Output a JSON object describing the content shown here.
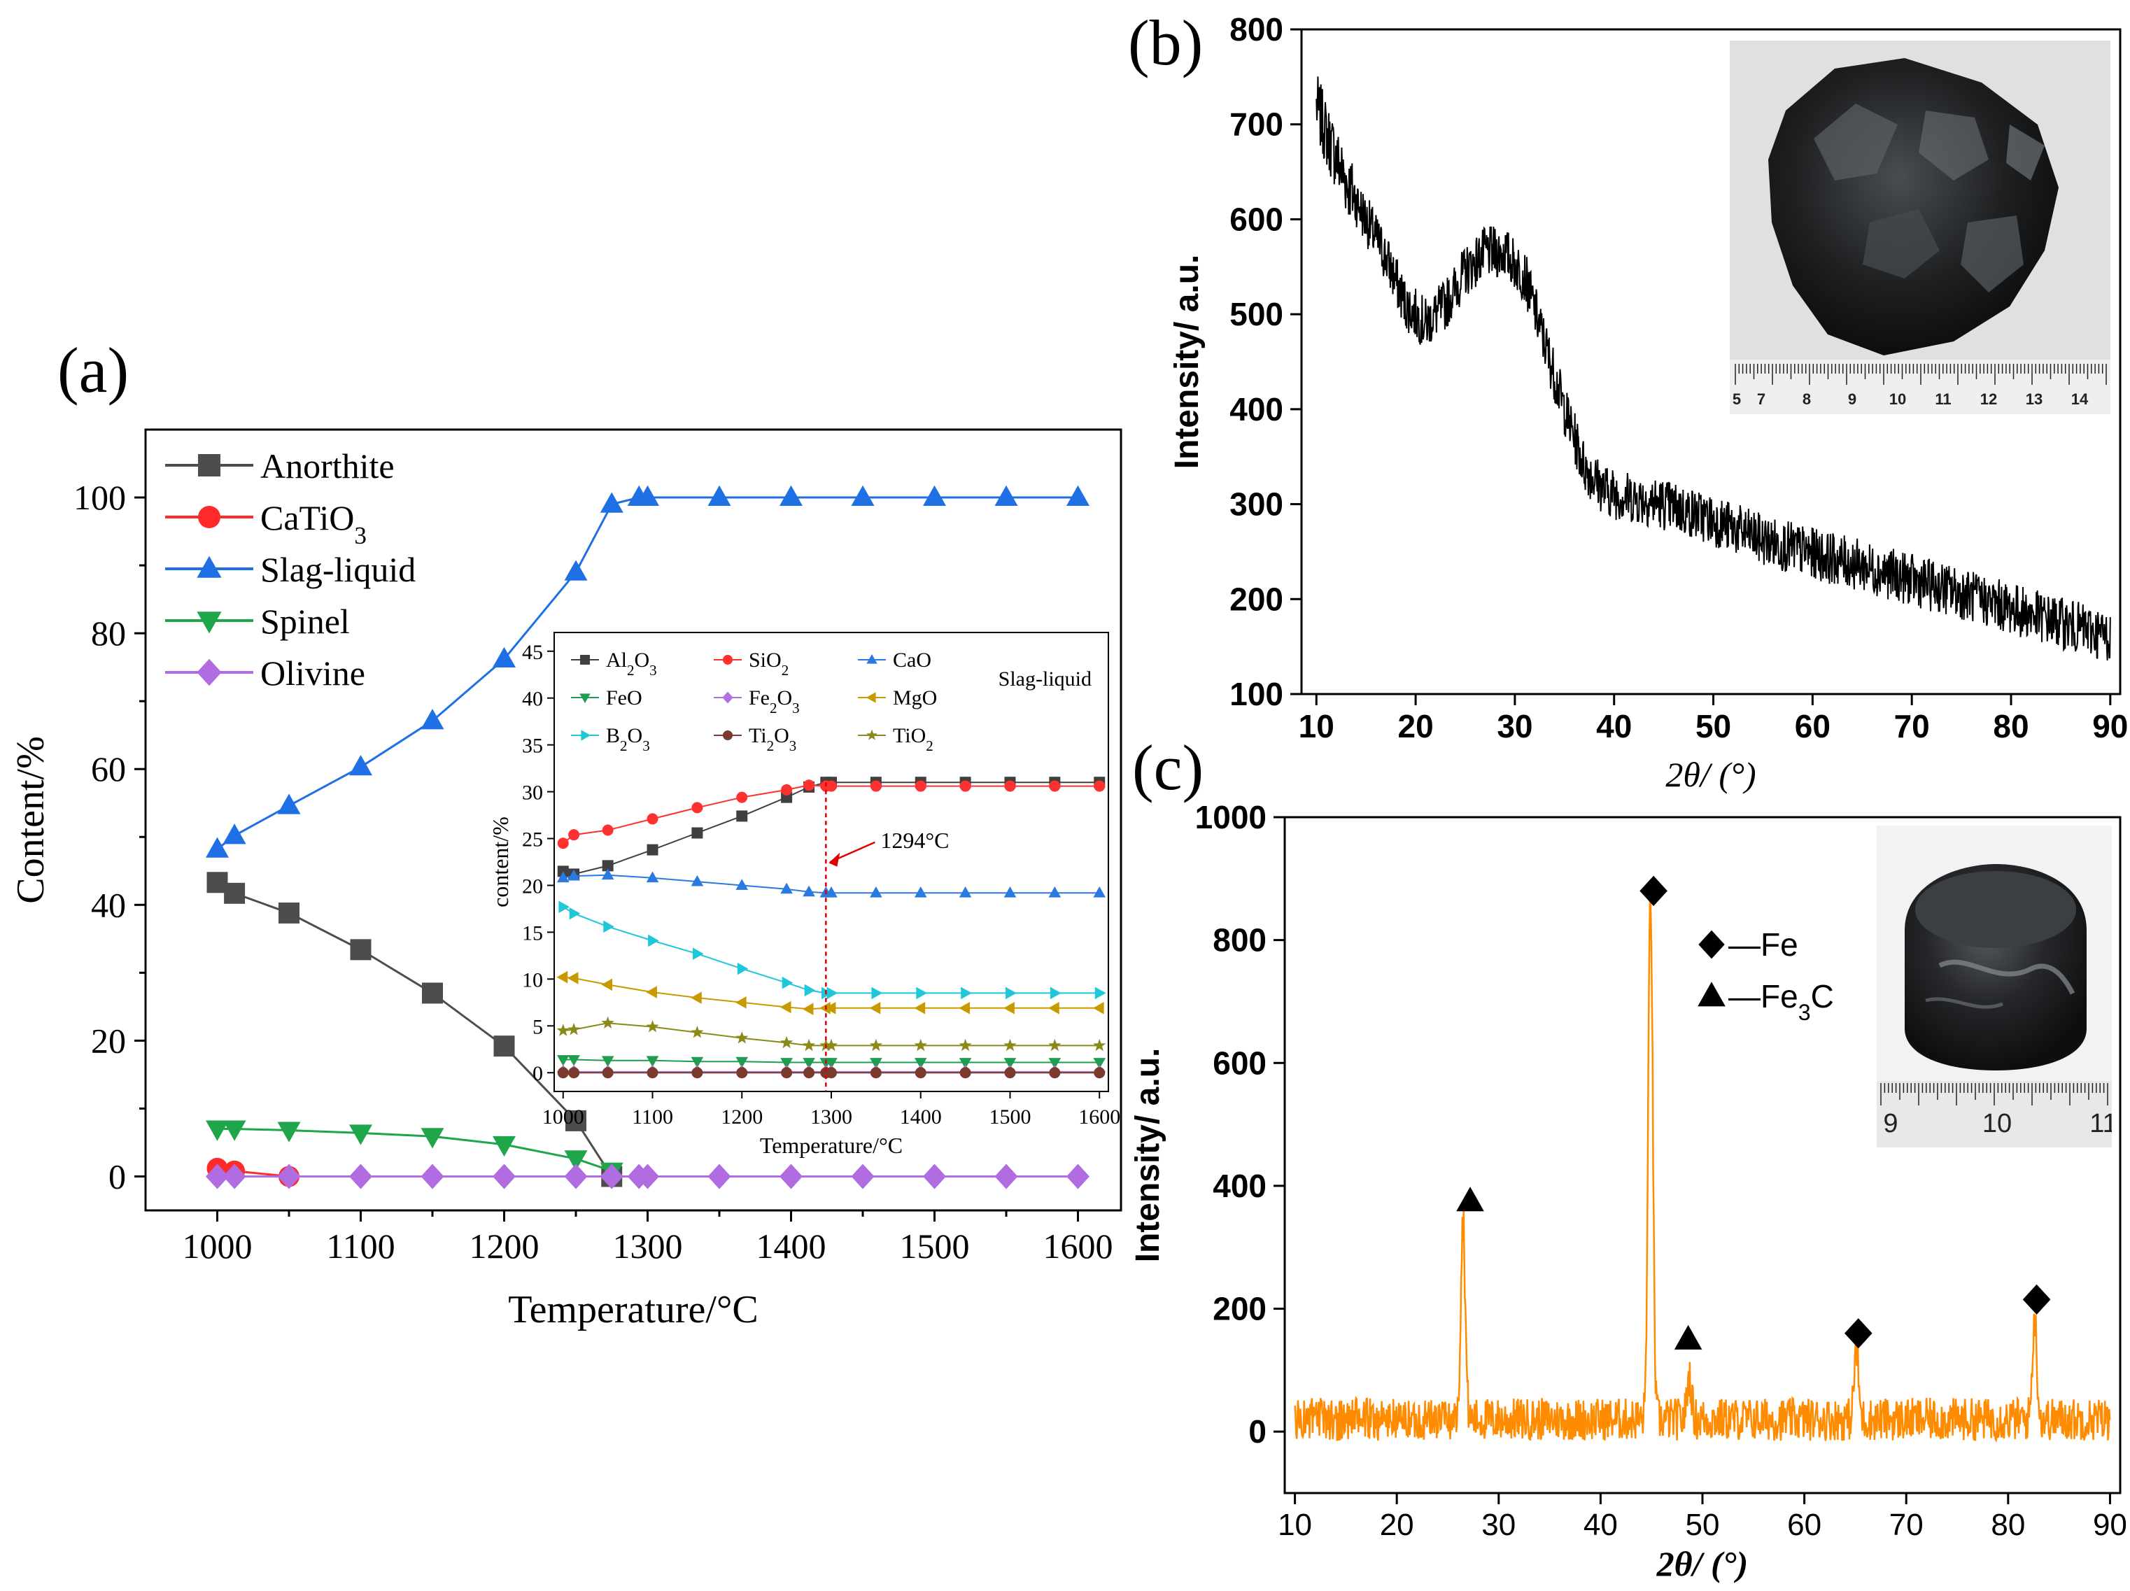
{
  "panels": {
    "a": {
      "label": "(a)"
    },
    "b": {
      "label": "(b)"
    },
    "c": {
      "label": "(c)"
    }
  },
  "chart_data": [
    {
      "id": "a",
      "type": "line",
      "xlabel": "Temperature/°C",
      "ylabel": "Content/%",
      "xlim": [
        950,
        1630
      ],
      "ylim": [
        -5,
        110
      ],
      "xticks": [
        1000,
        1100,
        1200,
        1300,
        1400,
        1500,
        1600
      ],
      "yticks": [
        0,
        20,
        40,
        60,
        80,
        100
      ],
      "legend_position": "top-left",
      "series": [
        {
          "name": "Anorthite",
          "color": "#4d4d4d",
          "marker": "square",
          "x": [
            1000,
            1012,
            1050,
            1100,
            1150,
            1200,
            1250,
            1275
          ],
          "y": [
            43.3,
            41.7,
            38.8,
            33.4,
            27.0,
            19.2,
            8.2,
            0
          ]
        },
        {
          "name": "CaTiO3",
          "name_display": [
            "CaTiO",
            "3"
          ],
          "color": "#ff2a2a",
          "marker": "circle",
          "x": [
            1000,
            1012,
            1050
          ],
          "y": [
            1.2,
            0.8,
            0
          ]
        },
        {
          "name": "Slag-liquid",
          "color": "#1f6fe5",
          "marker": "triangle-up",
          "x": [
            1000,
            1012,
            1050,
            1100,
            1150,
            1200,
            1250,
            1275,
            1294,
            1300,
            1350,
            1400,
            1450,
            1500,
            1550,
            1600
          ],
          "y": [
            48.2,
            50.2,
            54.6,
            60.3,
            67.1,
            76.2,
            89.0,
            99.0,
            100,
            100,
            100,
            100,
            100,
            100,
            100,
            100
          ]
        },
        {
          "name": "Spinel",
          "color": "#1fa64a",
          "marker": "triangle-down",
          "x": [
            1000,
            1012,
            1050,
            1100,
            1150,
            1200,
            1250,
            1275
          ],
          "y": [
            7.0,
            7.0,
            6.8,
            6.4,
            5.9,
            4.7,
            2.6,
            0.8
          ]
        },
        {
          "name": "Olivine",
          "color": "#b06ce0",
          "marker": "diamond",
          "x": [
            1000,
            1012,
            1050,
            1100,
            1150,
            1200,
            1250,
            1275,
            1294,
            1300,
            1350,
            1400,
            1450,
            1500,
            1550,
            1600
          ],
          "y": [
            0,
            0,
            0,
            0,
            0,
            0,
            0,
            0,
            0,
            0,
            0,
            0,
            0,
            0,
            0,
            0
          ]
        }
      ],
      "inset": {
        "type": "line",
        "title": "Slag-liquid",
        "xlabel": "Temperature/°C",
        "ylabel": "content/%",
        "xlim": [
          990,
          1610
        ],
        "ylim": [
          -2,
          47
        ],
        "xticks": [
          1000,
          1100,
          1200,
          1300,
          1400,
          1500,
          1600
        ],
        "yticks": [
          0,
          5,
          10,
          15,
          20,
          25,
          30,
          35,
          40,
          45
        ],
        "annotation": {
          "text": "1294°C",
          "x": 1294
        },
        "x": [
          1000,
          1012,
          1050,
          1100,
          1150,
          1200,
          1250,
          1275,
          1294,
          1300,
          1350,
          1400,
          1450,
          1500,
          1550,
          1600
        ],
        "series": [
          {
            "name": "Al2O3",
            "name_display": [
              "Al",
              "2",
              "O",
              "3"
            ],
            "color": "#404040",
            "marker": "square",
            "y": [
              21.5,
              21.2,
              22.1,
              23.8,
              25.6,
              27.4,
              29.4,
              30.5,
              31.0,
              31.0,
              31.0,
              31.0,
              31.0,
              31.0,
              31.0,
              31.0
            ]
          },
          {
            "name": "SiO2",
            "name_display": [
              "SiO",
              "2"
            ],
            "color": "#ff3030",
            "marker": "circle",
            "y": [
              24.5,
              25.4,
              25.9,
              27.1,
              28.3,
              29.4,
              30.2,
              30.7,
              30.6,
              30.6,
              30.6,
              30.6,
              30.6,
              30.6,
              30.6,
              30.6
            ]
          },
          {
            "name": "CaO",
            "color": "#2a7ae2",
            "marker": "triangle-up",
            "y": [
              20.8,
              21.0,
              21.1,
              20.8,
              20.4,
              20.0,
              19.6,
              19.3,
              19.2,
              19.2,
              19.2,
              19.2,
              19.2,
              19.2,
              19.2,
              19.2
            ]
          },
          {
            "name": "FeO",
            "color": "#1f9e50",
            "marker": "triangle-down",
            "y": [
              1.4,
              1.4,
              1.3,
              1.3,
              1.2,
              1.2,
              1.1,
              1.1,
              1.1,
              1.1,
              1.1,
              1.1,
              1.1,
              1.1,
              1.1,
              1.1
            ]
          },
          {
            "name": "Fe2O3",
            "name_display": [
              "Fe",
              "2",
              "O",
              "3"
            ],
            "color": "#b070e0",
            "marker": "diamond",
            "y": [
              0.1,
              0.1,
              0.1,
              0.1,
              0.1,
              0.1,
              0.1,
              0.1,
              0.1,
              0.1,
              0.1,
              0.1,
              0.1,
              0.1,
              0.1,
              0.1
            ]
          },
          {
            "name": "MgO",
            "color": "#c99a00",
            "marker": "triangle-left",
            "y": [
              10.2,
              10.1,
              9.4,
              8.6,
              8.0,
              7.5,
              7.0,
              6.8,
              6.9,
              6.9,
              6.9,
              6.9,
              6.9,
              6.9,
              6.9,
              6.9
            ]
          },
          {
            "name": "B2O3",
            "name_display": [
              "B",
              "2",
              "O",
              "3"
            ],
            "color": "#1ec8d8",
            "marker": "triangle-right",
            "y": [
              17.7,
              17.0,
              15.6,
              14.1,
              12.7,
              11.1,
              9.6,
              8.8,
              8.5,
              8.5,
              8.5,
              8.5,
              8.5,
              8.5,
              8.5,
              8.5
            ]
          },
          {
            "name": "Ti2O3",
            "name_display": [
              "Ti",
              "2",
              "O",
              "3"
            ],
            "color": "#7a3b2e",
            "marker": "circle",
            "y": [
              0,
              0,
              0,
              0,
              0,
              0,
              0,
              0,
              0,
              0,
              0,
              0,
              0,
              0,
              0,
              0
            ]
          },
          {
            "name": "TiO2",
            "name_display": [
              "TiO",
              "2"
            ],
            "color": "#8a8a1a",
            "marker": "star",
            "y": [
              4.5,
              4.6,
              5.3,
              4.9,
              4.3,
              3.7,
              3.2,
              2.9,
              2.9,
              2.9,
              2.9,
              2.9,
              2.9,
              2.9,
              2.9,
              2.9
            ]
          }
        ]
      }
    },
    {
      "id": "b",
      "type": "line",
      "xlabel": "2θ/ (°)",
      "ylabel": "Intensity/ a.u.",
      "xlim": [
        8.5,
        91
      ],
      "ylim": [
        100,
        800
      ],
      "xticks": [
        10,
        20,
        30,
        40,
        50,
        60,
        70,
        80,
        90
      ],
      "yticks": [
        100,
        200,
        300,
        400,
        500,
        600,
        700,
        800
      ],
      "series": [
        {
          "color": "#000000",
          "profile": [
            [
              10,
              720
            ],
            [
              11,
              690
            ],
            [
              13,
              640
            ],
            [
              15,
              600
            ],
            [
              17,
              560
            ],
            [
              19,
              510
            ],
            [
              21,
              490
            ],
            [
              23,
              510
            ],
            [
              25,
              545
            ],
            [
              27,
              565
            ],
            [
              29,
              565
            ],
            [
              31,
              540
            ],
            [
              33,
              470
            ],
            [
              35,
              400
            ],
            [
              37,
              340
            ],
            [
              39,
              315
            ],
            [
              41,
              308
            ],
            [
              43,
              305
            ],
            [
              45,
              300
            ],
            [
              48,
              290
            ],
            [
              50,
              283
            ],
            [
              55,
              262
            ],
            [
              60,
              248
            ],
            [
              65,
              235
            ],
            [
              70,
              220
            ],
            [
              75,
              206
            ],
            [
              80,
              190
            ],
            [
              85,
              175
            ],
            [
              90,
              160
            ]
          ],
          "noise_amplitude": 55
        }
      ],
      "inset_photo": {
        "ruler_labels": [
          "5",
          "7",
          "8",
          "9",
          "10",
          "11",
          "12",
          "13",
          "14"
        ]
      }
    },
    {
      "id": "c",
      "type": "line",
      "xlabel": "2θ/ (°)",
      "ylabel": "Intensity/ a.u.",
      "xlim": [
        9,
        91
      ],
      "ylim": [
        -100,
        1000
      ],
      "xticks": [
        10,
        20,
        30,
        40,
        50,
        60,
        70,
        80,
        90
      ],
      "yticks": [
        0,
        200,
        400,
        600,
        800,
        1000
      ],
      "legend": [
        {
          "marker": "diamond",
          "label": "—Fe"
        },
        {
          "marker": "triangle-up",
          "label_parts": [
            "—Fe",
            "3",
            "C"
          ]
        }
      ],
      "series": [
        {
          "color": "#ff8c00",
          "baseline": 20,
          "noise_amplitude": 70,
          "peaks": [
            {
              "x": 26.5,
              "y": 345,
              "phase": "Fe3C"
            },
            {
              "x": 44.9,
              "y": 880,
              "phase": "Fe"
            },
            {
              "x": 48.7,
              "y": 90,
              "phase": "Fe3C"
            },
            {
              "x": 65.1,
              "y": 130,
              "phase": "Fe"
            },
            {
              "x": 82.6,
              "y": 185,
              "phase": "Fe"
            }
          ]
        }
      ],
      "peak_markers": [
        {
          "x": 27.2,
          "y": 375,
          "marker": "triangle-up"
        },
        {
          "x": 45.2,
          "y": 880,
          "marker": "diamond"
        },
        {
          "x": 48.6,
          "y": 150,
          "marker": "triangle-up"
        },
        {
          "x": 65.3,
          "y": 160,
          "marker": "diamond"
        },
        {
          "x": 82.8,
          "y": 215,
          "marker": "diamond"
        }
      ],
      "inset_photo": {
        "ruler_labels": [
          "9",
          "10",
          "11"
        ]
      }
    }
  ]
}
